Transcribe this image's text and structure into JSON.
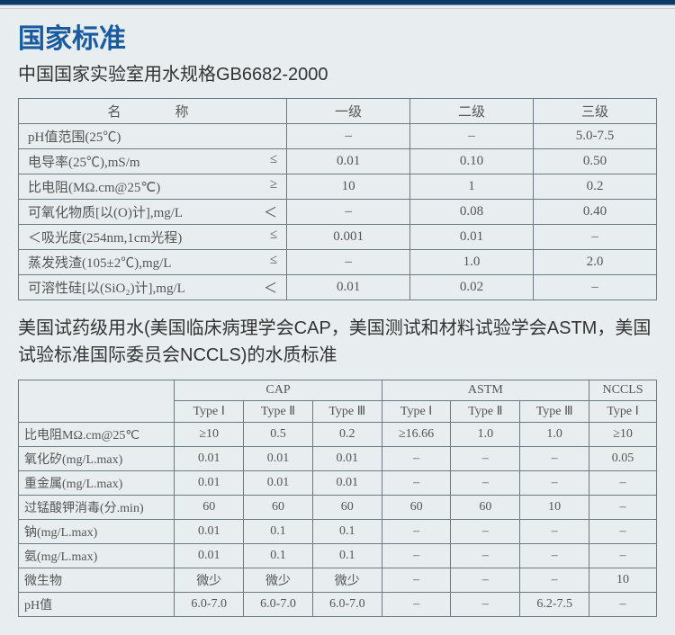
{
  "heading": "国家标准",
  "subheading": "中国国家实验室用水规格GB6682-2000",
  "table1": {
    "headers": {
      "name": "名　　称",
      "g1": "一级",
      "g2": "二级",
      "g3": "三级"
    },
    "rows": [
      {
        "name": "pH值范围(25℃)",
        "op": "",
        "g1": "–",
        "g2": "–",
        "g3": "5.0-7.5"
      },
      {
        "name": "电导率(25℃),mS/m",
        "op": "≤",
        "g1": "0.01",
        "g2": "0.10",
        "g3": "0.50"
      },
      {
        "name": "比电阻(MΩ.cm@25℃)",
        "op": "≥",
        "g1": "10",
        "g2": "1",
        "g3": "0.2"
      },
      {
        "name": "可氧化物质[以(O)计],mg/L",
        "op": "＜",
        "g1": "–",
        "g2": "0.08",
        "g3": "0.40"
      },
      {
        "name": "＜吸光度(254nm,1cm光程)",
        "op": "≤",
        "g1": "0.001",
        "g2": "0.01",
        "g3": "–"
      },
      {
        "name": "蒸发残渣(105±2℃),mg/L",
        "op": "≤",
        "g1": "–",
        "g2": "1.0",
        "g3": "2.0"
      },
      {
        "name": "可溶性硅[以(SiO₂)计],mg/L",
        "op": "＜",
        "g1": "0.01",
        "g2": "0.02",
        "g3": "–"
      }
    ]
  },
  "intro2": "美国试药级用水(美国临床病理学会CAP，美国测试和材料试验学会ASTM，美国试验标准国际委员会NCCLS)的水质标准",
  "table2": {
    "groupHeaders": {
      "cap": "CAP",
      "astm": "ASTM",
      "nccls": "NCCLS"
    },
    "subHeaders": {
      "cap1": "Type Ⅰ",
      "cap2": "Type Ⅱ",
      "cap3": "Type Ⅲ",
      "astm1": "Type Ⅰ",
      "astm2": "Type Ⅱ",
      "astm3": "Type Ⅲ",
      "nccls1": "Type Ⅰ"
    },
    "rows": [
      {
        "name": "比电阻MΩ.cm@25℃",
        "v": [
          "≥10",
          "0.5",
          "0.2",
          "≥16.66",
          "1.0",
          "1.0",
          "≥10"
        ]
      },
      {
        "name": "氧化矽(mg/L.max)",
        "v": [
          "0.01",
          "0.01",
          "0.01",
          "–",
          "–",
          "–",
          "0.05"
        ]
      },
      {
        "name": "重金属(mg/L.max)",
        "v": [
          "0.01",
          "0.01",
          "0.01",
          "–",
          "–",
          "–",
          "–"
        ]
      },
      {
        "name": "过锰酸钾消毒(分.min)",
        "v": [
          "60",
          "60",
          "60",
          "60",
          "60",
          "10",
          "–"
        ]
      },
      {
        "name": "钠(mg/L.max)",
        "v": [
          "0.01",
          "0.1",
          "0.1",
          "–",
          "–",
          "–",
          "–"
        ]
      },
      {
        "name": "氨(mg/L.max)",
        "v": [
          "0.01",
          "0.1",
          "0.1",
          "–",
          "–",
          "–",
          "–"
        ]
      },
      {
        "name": "微生物",
        "v": [
          "微少",
          "微少",
          "微少",
          "–",
          "–",
          "–",
          "10"
        ]
      },
      {
        "name": "pH值",
        "v": [
          "6.0-7.0",
          "6.0-7.0",
          "6.0-7.0",
          "–",
          "–",
          "6.2-7.5",
          "–"
        ]
      }
    ]
  },
  "colors": {
    "accent": "#1a5a9e",
    "border": "#6b7a84",
    "background": "#e8eef0",
    "text": "#333"
  }
}
